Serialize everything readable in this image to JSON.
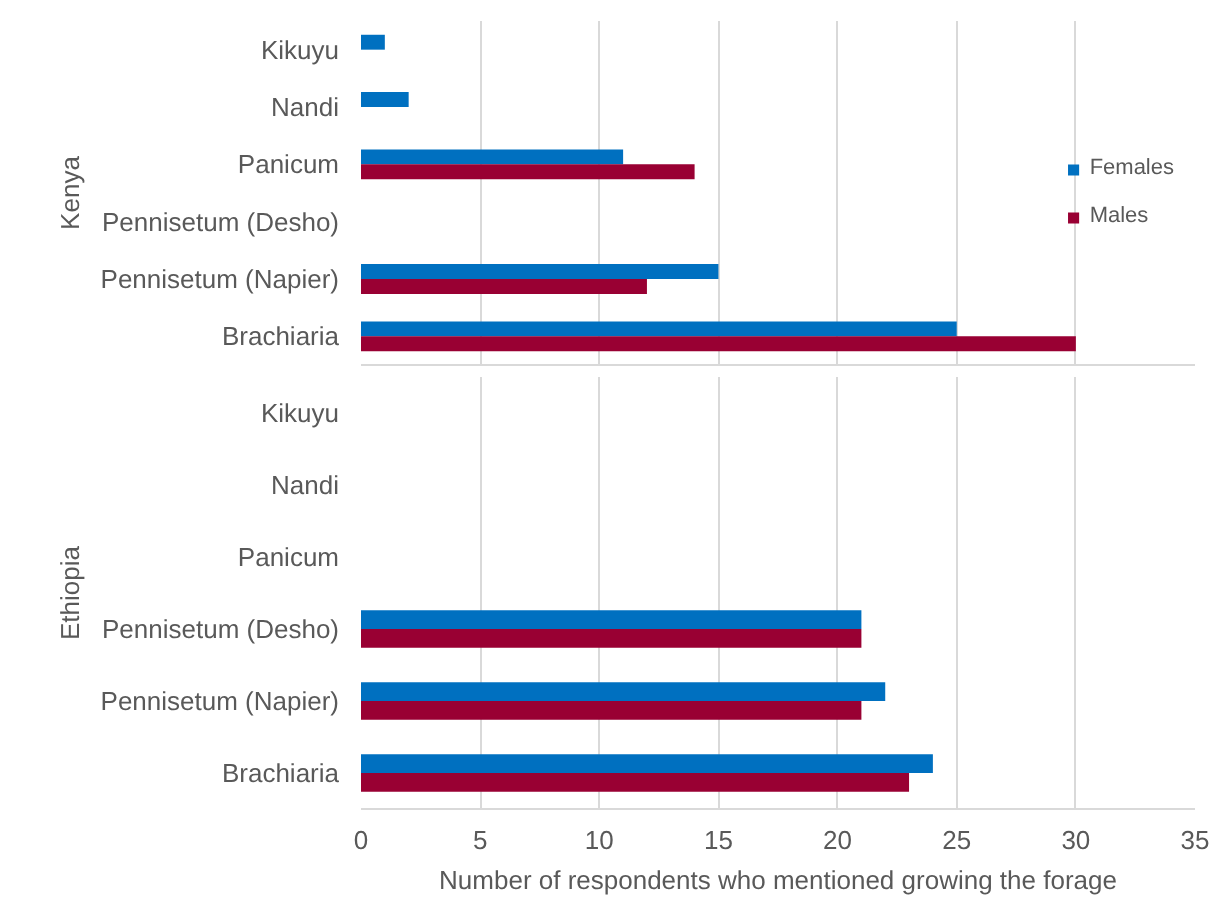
{
  "chart_data": [
    {
      "type": "bar",
      "orientation": "horizontal",
      "ylabel": "Kenya",
      "categories": [
        "Kikuyu",
        "Nandi",
        "Panicum",
        "Pennisetum (Desho)",
        "Pennisetum (Napier)",
        "Brachiaria"
      ],
      "series": [
        {
          "name": "Females",
          "color": "#0070c0",
          "values": [
            1,
            2,
            11,
            null,
            15,
            25
          ]
        },
        {
          "name": "Males",
          "color": "#990033",
          "values": [
            null,
            null,
            14,
            null,
            12,
            30
          ]
        }
      ],
      "xlim": [
        0,
        35
      ],
      "xticks": [
        0,
        5,
        10,
        15,
        20,
        25,
        30,
        35
      ],
      "tick_labels": "y",
      "grid": "x",
      "legend": "right"
    },
    {
      "type": "bar",
      "orientation": "horizontal",
      "ylabel": "Ethiopia",
      "xlabel": "Number of respondents who mentioned growing the forage",
      "categories": [
        "Kikuyu",
        "Nandi",
        "Panicum",
        "Pennisetum (Desho)",
        "Pennisetum (Napier)",
        "Brachiaria"
      ],
      "series": [
        {
          "color": "#0070c0",
          "values": [
            null,
            null,
            null,
            21,
            22,
            24
          ]
        },
        {
          "color": "#990033",
          "values": [
            null,
            null,
            null,
            21,
            21,
            23
          ]
        }
      ],
      "xlim": [
        0,
        35
      ],
      "xticks": [
        0,
        5,
        10,
        15,
        20,
        25,
        30,
        35
      ],
      "grid": "x"
    }
  ]
}
